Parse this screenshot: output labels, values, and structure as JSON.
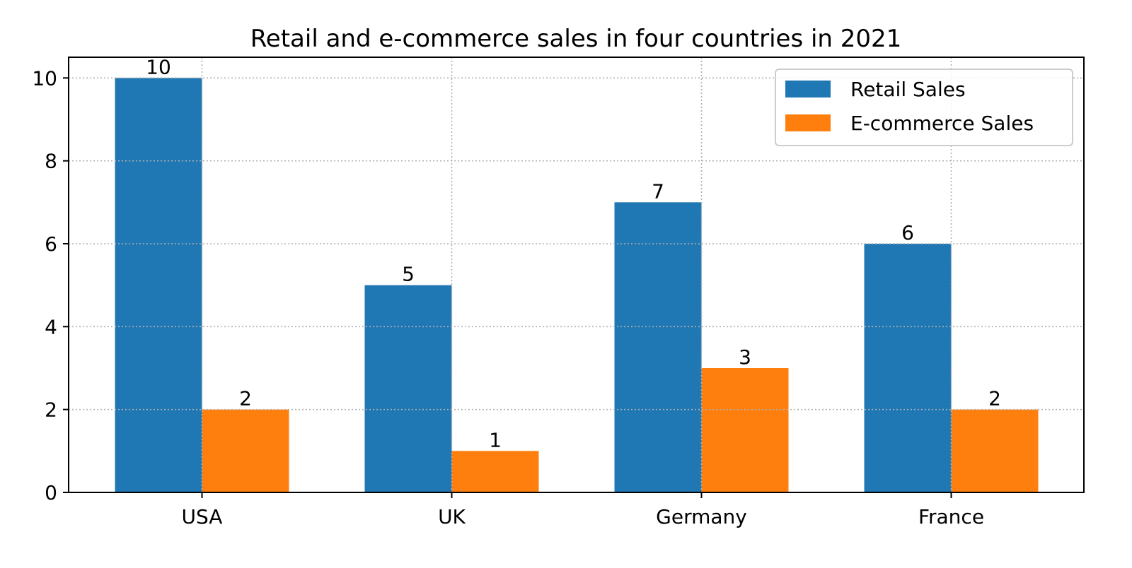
{
  "chart_data": {
    "type": "bar",
    "title": "Retail and e-commerce sales in four countries in 2021",
    "xlabel": "",
    "ylabel": "",
    "categories": [
      "USA",
      "UK",
      "Germany",
      "France"
    ],
    "series": [
      {
        "name": "Retail Sales",
        "values": [
          10,
          5,
          7,
          6
        ],
        "color": "#1f77b4"
      },
      {
        "name": "E-commerce Sales",
        "values": [
          2,
          1,
          3,
          2
        ],
        "color": "#ff7f0e"
      }
    ],
    "ylim": [
      0,
      10.5
    ],
    "yticks": [
      0,
      2,
      4,
      6,
      8,
      10
    ],
    "grid": true,
    "legend_position": "top-right",
    "data_labels": true
  }
}
